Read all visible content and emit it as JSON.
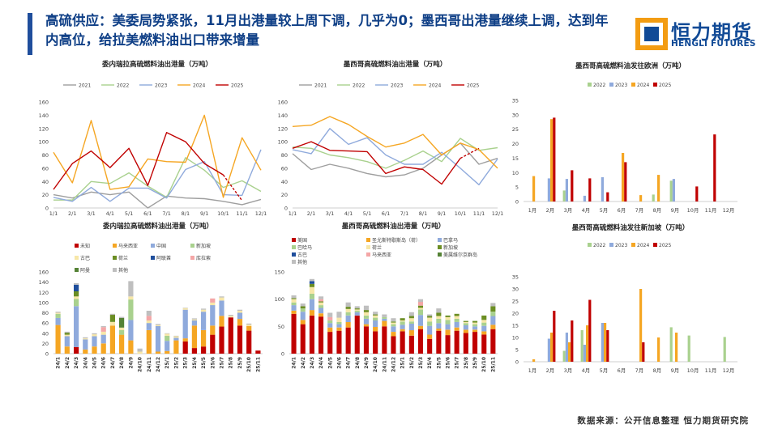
{
  "page": {
    "title": "高硫供应：美委局势紧张，11月出港量较上周下调，几乎为0；墨西哥出港量继续上调，达到年内高位，给拉美燃料油出口带来增量",
    "source": "数据来源：公开信息整理  恒力期货研究院",
    "logo_cn": "恒力期货",
    "logo_en": "HENGLI FUTURES",
    "accent_color": "#1f4e9c",
    "logo_color": "#f39c12"
  },
  "chart_data": [
    {
      "type": "line",
      "title": "委内瑞拉高硫燃料油出港量（万吨）",
      "x": [
        "1/1",
        "2/1",
        "3/1",
        "4/1",
        "5/1",
        "6/1",
        "7/1",
        "8/1",
        "9/1",
        "10/1",
        "11/1",
        "12/1"
      ],
      "ylim": [
        0,
        160
      ],
      "yticks": [
        0,
        20,
        40,
        60,
        80,
        100,
        120,
        140,
        160
      ],
      "grid": false,
      "legend_position": "top",
      "series": [
        {
          "name": "2021",
          "color": "#9e9e9e",
          "values": [
            20,
            15,
            24,
            20,
            24,
            0,
            18,
            15,
            14,
            10,
            5,
            13
          ]
        },
        {
          "name": "2022",
          "color": "#a9d18e",
          "values": [
            12,
            12,
            40,
            37,
            53,
            33,
            16,
            76,
            57,
            31,
            41,
            25
          ]
        },
        {
          "name": "2023",
          "color": "#8faadc",
          "values": [
            16,
            10,
            31,
            10,
            30,
            30,
            15,
            58,
            70,
            20,
            19,
            88
          ]
        },
        {
          "name": "2024",
          "color": "#f5a623",
          "values": [
            84,
            38,
            132,
            28,
            32,
            74,
            70,
            69,
            140,
            16,
            106,
            57
          ]
        },
        {
          "name": "2025",
          "color": "#c00000",
          "values": [
            28,
            67,
            86,
            61,
            90,
            34,
            114,
            100,
            67,
            50,
            null,
            null
          ],
          "dashed": [
            50,
            11
          ]
        }
      ]
    },
    {
      "type": "line",
      "title": "墨西哥高硫燃料油出港量（万吨）",
      "x": [
        "1/1",
        "2/1",
        "3/1",
        "4/1",
        "5/1",
        "6/1",
        "7/1",
        "8/1",
        "9/1",
        "10/1",
        "11/1",
        "12/1"
      ],
      "ylim": [
        0,
        160
      ],
      "yticks": [
        0,
        20,
        40,
        60,
        80,
        100,
        120,
        140,
        160
      ],
      "grid": false,
      "legend_position": "top",
      "series": [
        {
          "name": "2021",
          "color": "#9e9e9e",
          "values": [
            82,
            58,
            66,
            60,
            52,
            47,
            50,
            60,
            80,
            98,
            66,
            75
          ]
        },
        {
          "name": "2022",
          "color": "#a9d18e",
          "values": [
            92,
            90,
            80,
            76,
            70,
            60,
            72,
            86,
            70,
            105,
            87,
            91
          ]
        },
        {
          "name": "2023",
          "color": "#8faadc",
          "values": [
            88,
            82,
            120,
            96,
            106,
            80,
            66,
            66,
            84,
            60,
            35,
            74
          ]
        },
        {
          "name": "2024",
          "color": "#f5a623",
          "values": [
            123,
            125,
            138,
            126,
            108,
            92,
            98,
            111,
            80,
            98,
            88,
            60
          ]
        },
        {
          "name": "2025",
          "color": "#c00000",
          "values": [
            90,
            100,
            87,
            86,
            85,
            52,
            62,
            58,
            36,
            75,
            null,
            null
          ],
          "dashed": [
            75,
            90
          ]
        }
      ]
    },
    {
      "type": "bar",
      "title": "墨西哥高硫燃料油发往欧洲（万吨）",
      "categories": [
        "1月",
        "2月",
        "3月",
        "4月",
        "5月",
        "6月",
        "7月",
        "8月",
        "9月",
        "10月",
        "11月",
        "12月"
      ],
      "ylim": [
        0,
        35
      ],
      "yticks": [
        0,
        5,
        10,
        15,
        20,
        25,
        30,
        35
      ],
      "grid": false,
      "legend_position": "top",
      "series": [
        {
          "name": "2022",
          "color": "#a9d18e",
          "values": [
            0,
            0,
            3.8,
            0,
            0,
            0,
            0,
            2.4,
            7.2,
            0,
            0,
            0
          ]
        },
        {
          "name": "2023",
          "color": "#8faadc",
          "values": [
            0,
            8,
            7.8,
            2,
            8.4,
            0,
            0,
            0,
            7.8,
            0,
            0,
            0
          ]
        },
        {
          "name": "2024",
          "color": "#f5a623",
          "values": [
            8.8,
            28.5,
            0,
            0,
            0,
            16.8,
            2.2,
            9.2,
            0,
            0,
            0,
            0
          ]
        },
        {
          "name": "2025",
          "color": "#c00000",
          "values": [
            0,
            29,
            10.8,
            8,
            3.2,
            13.6,
            0,
            0,
            0,
            5.2,
            23.2,
            0
          ]
        }
      ]
    },
    {
      "type": "bar",
      "stacked": true,
      "title": "委内瑞拉高硫燃料油出港量（万吨）",
      "categories": [
        "24/1",
        "24/2",
        "24/3",
        "24/4",
        "24/5",
        "24/6",
        "24/7",
        "24/8",
        "24/9",
        "24/10",
        "24/11",
        "24/12",
        "25/1",
        "25/2",
        "25/3",
        "25/4",
        "25/5",
        "25/6",
        "25/7",
        "25/8",
        "25/9",
        "25/10",
        "25/11"
      ],
      "ylim": [
        0,
        160
      ],
      "yticks": [
        0,
        20,
        40,
        60,
        80,
        100,
        120,
        140,
        160
      ],
      "grid": false,
      "legend_position": "top",
      "series": [
        {
          "name": "未知",
          "color": "#c00000",
          "values": [
            0,
            0,
            13,
            0,
            0,
            0,
            0,
            0,
            0,
            0,
            0,
            0,
            0,
            0,
            24,
            11,
            14,
            37,
            53,
            71,
            55,
            45,
            6
          ]
        },
        {
          "name": "马来西亚",
          "color": "#f5a623",
          "values": [
            56,
            14,
            0,
            8,
            14,
            20,
            55,
            37,
            26,
            0,
            46,
            4,
            5,
            26,
            6,
            44,
            32,
            18,
            21,
            0,
            13,
            9,
            0
          ]
        },
        {
          "name": "中国",
          "color": "#8faadc",
          "values": [
            14,
            20,
            80,
            20,
            20,
            17,
            0,
            0,
            40,
            0,
            14,
            50,
            20,
            5,
            56,
            10,
            36,
            40,
            30,
            0,
            12,
            0,
            0
          ]
        },
        {
          "name": "新加坡",
          "color": "#a9d18e",
          "values": [
            8,
            0,
            14,
            0,
            0,
            0,
            0,
            9,
            40,
            0,
            0,
            0,
            10,
            0,
            0,
            0,
            0,
            0,
            0,
            0,
            0,
            0,
            0
          ]
        },
        {
          "name": "古巴",
          "color": "#f7e7a8",
          "values": [
            2,
            3,
            5,
            2,
            4,
            6,
            7,
            5,
            6,
            4,
            5,
            2,
            4,
            3,
            3,
            2,
            4,
            5,
            6,
            3,
            4,
            3,
            0
          ]
        },
        {
          "name": "荷兰",
          "color": "#6b8e23",
          "values": [
            0,
            4,
            10,
            0,
            0,
            0,
            14,
            0,
            0,
            0,
            0,
            0,
            0,
            0,
            0,
            0,
            0,
            0,
            0,
            0,
            0,
            0,
            0
          ]
        },
        {
          "name": "阿联酋",
          "color": "#1f4e9c",
          "values": [
            0,
            0,
            13,
            0,
            0,
            0,
            0,
            0,
            0,
            0,
            0,
            0,
            0,
            0,
            0,
            0,
            0,
            0,
            0,
            0,
            0,
            0,
            0
          ]
        },
        {
          "name": "库拉索",
          "color": "#f4a6a6",
          "values": [
            0,
            0,
            0,
            0,
            0,
            9,
            0,
            0,
            0,
            0,
            9,
            0,
            0,
            0,
            0,
            0,
            0,
            8,
            0,
            0,
            0,
            0,
            0
          ]
        },
        {
          "name": "阿曼",
          "color": "#548235",
          "values": [
            0,
            0,
            0,
            0,
            0,
            0,
            0,
            19,
            0,
            0,
            0,
            0,
            0,
            0,
            0,
            0,
            0,
            0,
            0,
            0,
            0,
            0,
            0
          ]
        },
        {
          "name": "其他",
          "color": "#bfbfbf",
          "values": [
            2,
            2,
            3,
            2,
            2,
            2,
            2,
            2,
            30,
            6,
            10,
            2,
            1,
            1,
            1,
            2,
            2,
            0,
            2,
            2,
            2,
            2,
            0
          ]
        }
      ]
    },
    {
      "type": "bar",
      "stacked": true,
      "title": "墨西哥高硫燃料油出港量（万吨）",
      "categories": [
        "24/1",
        "24/2",
        "24/3",
        "24/4",
        "24/5",
        "24/6",
        "24/7",
        "24/8",
        "24/9",
        "24/10",
        "24/11",
        "24/12",
        "25/1",
        "25/2",
        "25/3",
        "25/4",
        "25/5",
        "25/6",
        "25/7",
        "25/8",
        "25/9",
        "25/10",
        "25/11"
      ],
      "ylim": [
        0,
        150
      ],
      "yticks": [
        0,
        50,
        100,
        150
      ],
      "grid": false,
      "legend_position": "top",
      "series": [
        {
          "name": "美国",
          "color": "#c00000",
          "values": [
            73,
            54,
            70,
            68,
            40,
            42,
            48,
            70,
            50,
            41,
            50,
            32,
            41,
            33,
            45,
            27,
            42,
            34,
            42,
            38,
            40,
            35,
            45
          ]
        },
        {
          "name": "圣尤斯特歇斯岛（荷）",
          "color": "#f5a623",
          "values": [
            6,
            8,
            10,
            6,
            8,
            6,
            10,
            0,
            4,
            8,
            10,
            8,
            4,
            10,
            6,
            8,
            4,
            10,
            6,
            6,
            4,
            6,
            8
          ]
        },
        {
          "name": "巴拿马",
          "color": "#8faadc",
          "values": [
            10,
            15,
            20,
            10,
            8,
            6,
            12,
            6,
            10,
            12,
            4,
            10,
            8,
            12,
            20,
            16,
            10,
            10,
            10,
            8,
            6,
            10,
            16
          ]
        },
        {
          "name": "巴哈马",
          "color": "#a9d18e",
          "values": [
            5,
            6,
            10,
            5,
            5,
            4,
            6,
            3,
            6,
            5,
            3,
            4,
            6,
            4,
            10,
            8,
            8,
            8,
            6,
            4,
            4,
            6,
            8
          ]
        },
        {
          "name": "荷兰",
          "color": "#f7e7a8",
          "values": [
            6,
            0,
            12,
            5,
            0,
            8,
            6,
            2,
            6,
            4,
            0,
            3,
            2,
            6,
            3,
            7,
            5,
            5,
            5,
            2,
            3,
            5,
            0
          ]
        },
        {
          "name": "新加坡",
          "color": "#6b8e23",
          "values": [
            2,
            4,
            6,
            2,
            0,
            0,
            4,
            2,
            4,
            2,
            0,
            2,
            4,
            4,
            4,
            3,
            6,
            3,
            4,
            2,
            3,
            8,
            10
          ]
        },
        {
          "name": "古巴",
          "color": "#1f4e9c",
          "values": [
            0,
            0,
            5,
            0,
            0,
            0,
            0,
            0,
            0,
            0,
            0,
            0,
            0,
            0,
            0,
            0,
            0,
            0,
            0,
            0,
            0,
            0,
            0
          ]
        },
        {
          "name": "马来西亚",
          "color": "#f4a6a6",
          "values": [
            0,
            0,
            0,
            4,
            6,
            0,
            0,
            0,
            0,
            0,
            0,
            0,
            0,
            0,
            7,
            0,
            0,
            0,
            0,
            0,
            0,
            0,
            0
          ]
        },
        {
          "name": "美属维尔京群岛",
          "color": "#548235",
          "values": [
            0,
            0,
            0,
            0,
            0,
            0,
            0,
            0,
            0,
            0,
            0,
            0,
            0,
            0,
            0,
            0,
            0,
            0,
            0,
            0,
            0,
            0,
            0
          ]
        },
        {
          "name": "其他",
          "color": "#bfbfbf",
          "values": [
            5,
            5,
            4,
            5,
            8,
            11,
            8,
            4,
            8,
            5,
            5,
            6,
            0,
            7,
            5,
            3,
            8,
            0,
            0,
            0,
            0,
            0,
            6
          ]
        }
      ]
    },
    {
      "type": "bar",
      "title": "墨西哥高硫燃料油发往新加坡（万吨）",
      "categories": [
        "1月",
        "2月",
        "3月",
        "4月",
        "5月",
        "6月",
        "7月",
        "8月",
        "9月",
        "10月",
        "11月",
        "12月"
      ],
      "ylim": [
        0,
        35
      ],
      "yticks": [
        0,
        5,
        10,
        15,
        20,
        25,
        30,
        35
      ],
      "grid": false,
      "legend_position": "top",
      "series": [
        {
          "name": "2022",
          "color": "#a9d18e",
          "values": [
            0,
            0,
            4.5,
            13,
            0,
            0,
            0,
            0,
            14.2,
            10.8,
            0,
            10.2
          ]
        },
        {
          "name": "2023",
          "color": "#8faadc",
          "values": [
            0,
            9.5,
            12,
            7,
            16,
            0,
            0,
            0,
            0,
            0,
            0,
            0
          ]
        },
        {
          "name": "2024",
          "color": "#f5a623",
          "values": [
            1,
            12,
            8,
            15,
            16,
            0,
            30,
            10,
            12,
            0,
            0,
            0
          ]
        },
        {
          "name": "2025",
          "color": "#c00000",
          "values": [
            0,
            21,
            17,
            25.5,
            13,
            0,
            8,
            0,
            0,
            0,
            0,
            0
          ]
        }
      ]
    }
  ]
}
